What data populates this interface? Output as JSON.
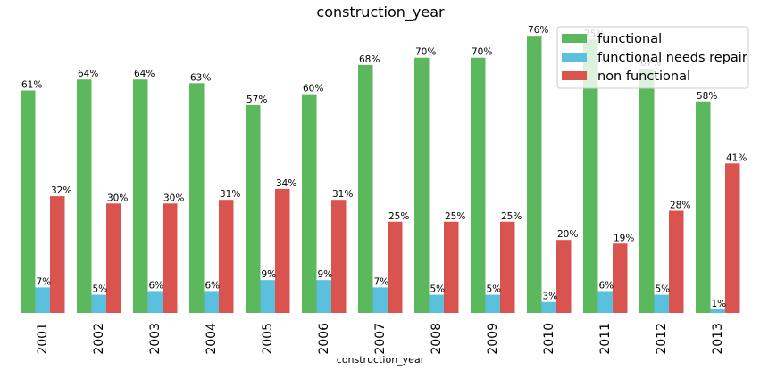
{
  "chart_data": {
    "type": "bar",
    "title": "construction_year",
    "xlabel": "construction_year",
    "ylabel": "",
    "ylim": [
      0,
      80
    ],
    "grid": false,
    "legend_position": "top-right",
    "categories": [
      "2001",
      "2002",
      "2003",
      "2004",
      "2005",
      "2006",
      "2007",
      "2008",
      "2009",
      "2010",
      "2011",
      "2012",
      "2013"
    ],
    "series": [
      {
        "name": "functional",
        "color": "#5cb85c",
        "values": [
          61,
          64,
          64,
          63,
          57,
          60,
          68,
          70,
          70,
          76,
          75,
          67,
          58
        ],
        "labels": [
          "61%",
          "64%",
          "64%",
          "63%",
          "57%",
          "60%",
          "68%",
          "70%",
          "70%",
          "76%",
          "75%",
          "67%",
          "58%"
        ]
      },
      {
        "name": "functional needs repair",
        "color": "#5bc0de",
        "values": [
          7,
          5,
          6,
          6,
          9,
          9,
          7,
          5,
          5,
          3,
          6,
          5,
          1
        ],
        "labels": [
          "7%",
          "5%",
          "6%",
          "6%",
          "9%",
          "9%",
          "7%",
          "5%",
          "5%",
          "3%",
          "6%",
          "5%",
          "1%"
        ]
      },
      {
        "name": "non functional",
        "color": "#d9534f",
        "values": [
          32,
          30,
          30,
          31,
          34,
          31,
          25,
          25,
          25,
          20,
          19,
          28,
          41
        ],
        "labels": [
          "32%",
          "30%",
          "30%",
          "31%",
          "34%",
          "31%",
          "25%",
          "25%",
          "25%",
          "20%",
          "19%",
          "28%",
          "41%"
        ]
      }
    ]
  }
}
